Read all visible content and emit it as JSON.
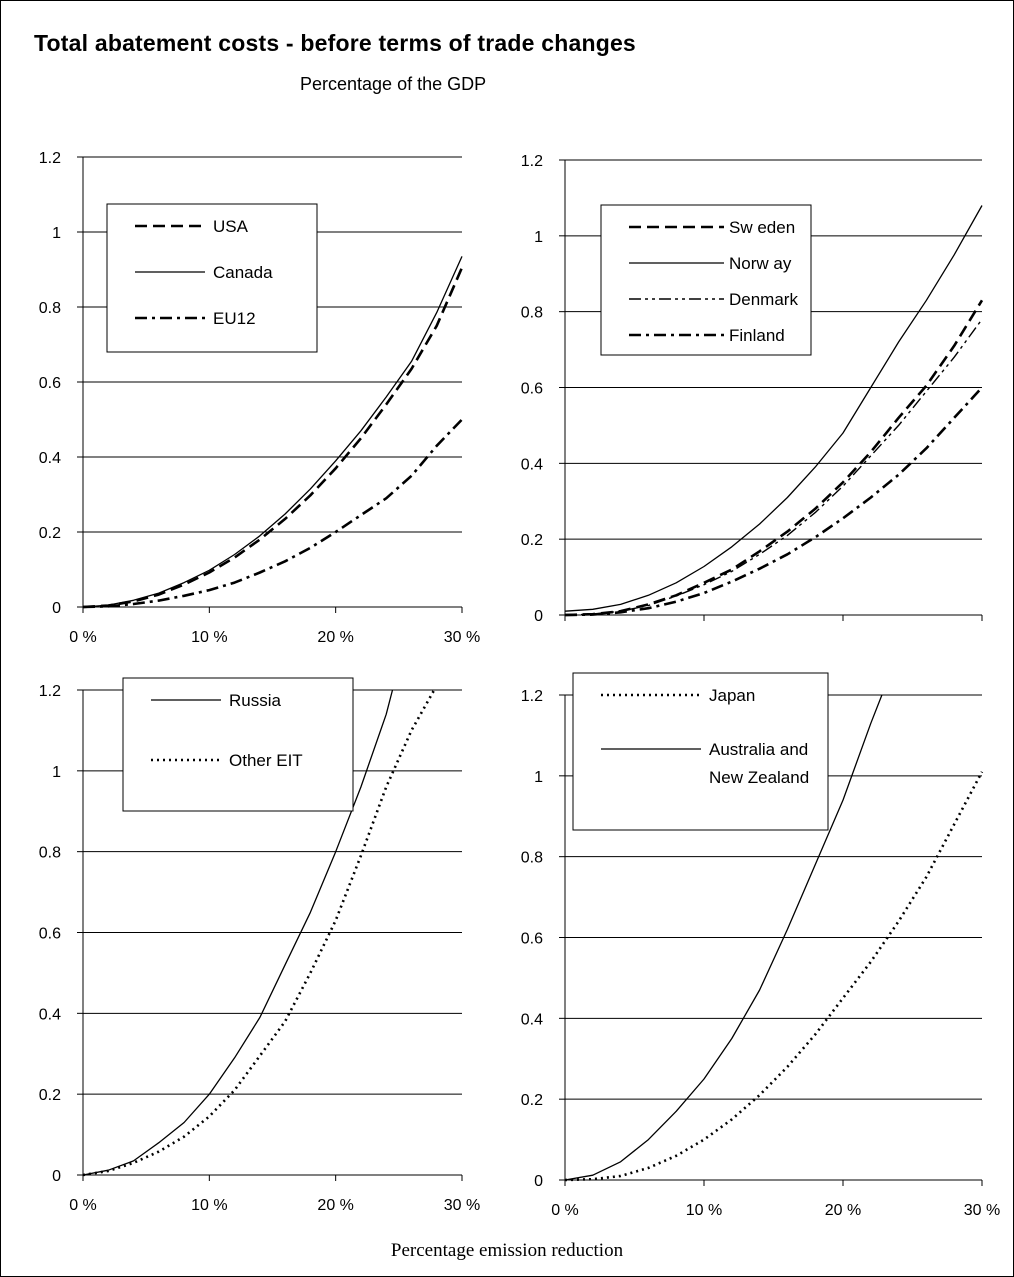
{
  "title": "Total abatement costs - before terms of trade changes",
  "subtitle": "Percentage of the GDP",
  "xlabel": "Percentage emission reduction",
  "chart_data": [
    {
      "type": "line",
      "x_ticks": [
        "0 %",
        "10 %",
        "20 %",
        "30 %"
      ],
      "y_ticks": [
        "0",
        "0.2",
        "0.4",
        "0.6",
        "0.8",
        "1",
        "1.2"
      ],
      "xlim": [
        0,
        30
      ],
      "ylim": [
        0,
        1.2
      ],
      "grid": "horizontal",
      "legend_position": "top-left",
      "series": [
        {
          "name": "USA",
          "style": "dashed",
          "x": [
            0,
            2,
            4,
            6,
            8,
            10,
            12,
            14,
            16,
            18,
            20,
            22,
            24,
            26,
            28,
            30
          ],
          "y": [
            0,
            0.004,
            0.015,
            0.033,
            0.06,
            0.092,
            0.132,
            0.18,
            0.235,
            0.298,
            0.37,
            0.45,
            0.54,
            0.635,
            0.75,
            0.905
          ]
        },
        {
          "name": "Canada",
          "style": "solid",
          "x": [
            0,
            2,
            4,
            6,
            8,
            10,
            12,
            14,
            16,
            18,
            20,
            22,
            24,
            26,
            28,
            30
          ],
          "y": [
            0,
            0.005,
            0.018,
            0.037,
            0.065,
            0.098,
            0.14,
            0.19,
            0.248,
            0.315,
            0.39,
            0.47,
            0.56,
            0.655,
            0.785,
            0.935
          ]
        },
        {
          "name": "EU12",
          "style": "dashdot",
          "x": [
            0,
            2,
            4,
            6,
            8,
            10,
            12,
            14,
            16,
            18,
            20,
            22,
            24,
            26,
            28,
            30
          ],
          "y": [
            0,
            0.002,
            0.008,
            0.017,
            0.03,
            0.045,
            0.065,
            0.092,
            0.122,
            0.158,
            0.2,
            0.245,
            0.29,
            0.35,
            0.43,
            0.5
          ]
        }
      ]
    },
    {
      "type": "line",
      "x_ticks": [
        "0 %",
        "10 %",
        "20 %",
        "30 %"
      ],
      "y_ticks": [
        "0",
        "0.2",
        "0.4",
        "0.6",
        "0.8",
        "1",
        "1.2"
      ],
      "xlim": [
        0,
        30
      ],
      "ylim": [
        0,
        1.2
      ],
      "grid": "horizontal",
      "legend_position": "top-left",
      "series": [
        {
          "name": "Sw eden",
          "style": "dashed",
          "x": [
            0,
            2,
            4,
            6,
            8,
            10,
            12,
            14,
            16,
            18,
            20,
            22,
            24,
            26,
            28,
            30
          ],
          "y": [
            0,
            0.002,
            0.01,
            0.028,
            0.052,
            0.085,
            0.12,
            0.168,
            0.22,
            0.28,
            0.35,
            0.43,
            0.52,
            0.605,
            0.71,
            0.83
          ]
        },
        {
          "name": "Norw ay",
          "style": "solid",
          "x": [
            0,
            2,
            4,
            6,
            8,
            10,
            12,
            14,
            16,
            18,
            20,
            22,
            24,
            26,
            28,
            30
          ],
          "y": [
            0.01,
            0.015,
            0.028,
            0.052,
            0.085,
            0.128,
            0.18,
            0.24,
            0.31,
            0.39,
            0.48,
            0.6,
            0.72,
            0.83,
            0.95,
            1.08
          ]
        },
        {
          "name": "Denmark",
          "style": "dashdotdot",
          "x": [
            0,
            2,
            4,
            6,
            8,
            10,
            12,
            14,
            16,
            18,
            20,
            22,
            24,
            26,
            28,
            30
          ],
          "y": [
            0,
            0.002,
            0.01,
            0.025,
            0.05,
            0.08,
            0.115,
            0.16,
            0.21,
            0.27,
            0.34,
            0.42,
            0.5,
            0.59,
            0.68,
            0.78
          ]
        },
        {
          "name": "Finland",
          "style": "dashdot",
          "x": [
            0,
            2,
            4,
            6,
            8,
            10,
            12,
            14,
            16,
            18,
            20,
            22,
            24,
            26,
            28,
            30
          ],
          "y": [
            0,
            0.001,
            0.007,
            0.018,
            0.035,
            0.058,
            0.088,
            0.122,
            0.16,
            0.205,
            0.255,
            0.31,
            0.37,
            0.44,
            0.52,
            0.6
          ]
        }
      ]
    },
    {
      "type": "line",
      "x_ticks": [
        "0 %",
        "10 %",
        "20 %",
        "30 %"
      ],
      "y_ticks": [
        "0",
        "0.2",
        "0.4",
        "0.6",
        "0.8",
        "1",
        "1.2"
      ],
      "xlim": [
        0,
        30
      ],
      "ylim": [
        0,
        1.2
      ],
      "grid": "horizontal",
      "legend_position": "top-center",
      "series": [
        {
          "name": "Russia",
          "style": "solid",
          "x": [
            0,
            2,
            4,
            6,
            8,
            10,
            12,
            14,
            16,
            18,
            20,
            22,
            24,
            24.5
          ],
          "y": [
            0,
            0.012,
            0.035,
            0.08,
            0.13,
            0.2,
            0.29,
            0.39,
            0.52,
            0.65,
            0.8,
            0.96,
            1.14,
            1.2
          ]
        },
        {
          "name": "Other EIT",
          "style": "dotted",
          "x": [
            0,
            2,
            4,
            6,
            8,
            10,
            12,
            14,
            16,
            18,
            20,
            22,
            24,
            26,
            27.8
          ],
          "y": [
            0,
            0.01,
            0.03,
            0.058,
            0.095,
            0.145,
            0.21,
            0.295,
            0.38,
            0.5,
            0.63,
            0.79,
            0.96,
            1.1,
            1.2
          ]
        }
      ]
    },
    {
      "type": "line",
      "x_ticks": [
        "0 %",
        "10 %",
        "20 %",
        "30 %"
      ],
      "y_ticks": [
        "0",
        "0.2",
        "0.4",
        "0.6",
        "0.8",
        "1",
        "1.2"
      ],
      "xlim": [
        0,
        30
      ],
      "ylim": [
        0,
        1.2
      ],
      "grid": "horizontal",
      "legend_position": "top-left",
      "series": [
        {
          "name": "Japan",
          "style": "dotted",
          "x": [
            0,
            2,
            4,
            6,
            8,
            10,
            12,
            14,
            16,
            18,
            20,
            22,
            24,
            26,
            28,
            30
          ],
          "y": [
            0,
            0.002,
            0.01,
            0.03,
            0.06,
            0.1,
            0.15,
            0.21,
            0.28,
            0.36,
            0.45,
            0.54,
            0.64,
            0.75,
            0.88,
            1.01
          ]
        },
        {
          "name": "Australia and New  Zealand",
          "style": "solid",
          "x": [
            0,
            2,
            4,
            6,
            8,
            10,
            12,
            14,
            16,
            18,
            20,
            22,
            22.8
          ],
          "y": [
            0,
            0.012,
            0.045,
            0.1,
            0.17,
            0.25,
            0.35,
            0.47,
            0.62,
            0.78,
            0.94,
            1.13,
            1.2
          ]
        }
      ]
    }
  ]
}
